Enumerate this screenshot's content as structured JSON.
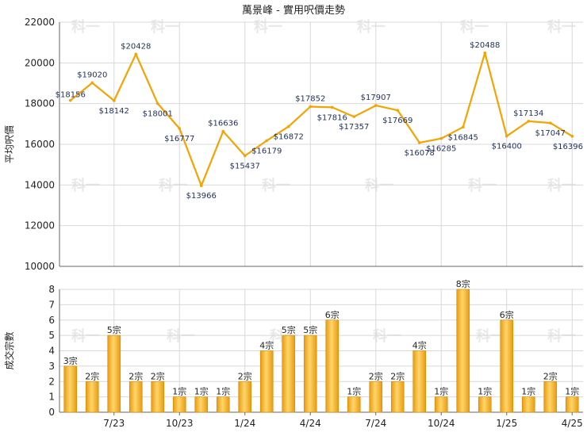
{
  "chart_data": [
    {
      "type": "line",
      "title": "萬景峰 - 實用呎價走勢",
      "ylabel": "平均呎價",
      "ylim": [
        10000,
        22000
      ],
      "yticks": [
        10000,
        12000,
        14000,
        16000,
        18000,
        20000,
        22000
      ],
      "grid": true,
      "series": [
        {
          "color": "#f5a300",
          "values": [
            18156,
            19020,
            18142,
            20428,
            18001,
            16777,
            13966,
            16636,
            15437,
            16179,
            16872,
            17852,
            17816,
            17357,
            17907,
            17669,
            16078,
            16285,
            16845,
            20488,
            16400,
            17134,
            17047,
            16396
          ],
          "labels": [
            "$18156",
            "$19020",
            "$18142",
            "$20428",
            "$18001",
            "$16777",
            "$13966",
            "$16636",
            "$15437",
            "$16179",
            "$16872",
            "$17852",
            "$17816",
            "$17357",
            "$17907",
            "$17669",
            "$16078",
            "$16285",
            "$16845",
            "$20488",
            "$16400",
            "$17134",
            "$17047",
            "$16396"
          ]
        }
      ]
    },
    {
      "type": "bar",
      "ylabel": "成交宗數",
      "ylim": [
        0,
        8
      ],
      "yticks": [
        0,
        1,
        2,
        3,
        4,
        5,
        6,
        7,
        8
      ],
      "grid": true,
      "color": "#f0a818",
      "values": [
        3,
        2,
        5,
        2,
        2,
        1,
        1,
        1,
        2,
        4,
        5,
        5,
        6,
        1,
        2,
        2,
        4,
        1,
        8,
        1,
        6,
        1,
        2,
        1
      ],
      "labels": [
        "3宗",
        "2宗",
        "5宗",
        "2宗",
        "2宗",
        "1宗",
        "1宗",
        "1宗",
        "2宗",
        "4宗",
        "5宗",
        "5宗",
        "6宗",
        "1宗",
        "2宗",
        "2宗",
        "4宗",
        "1宗",
        "8宗",
        "1宗",
        "6宗",
        "1宗",
        "2宗",
        "1宗"
      ],
      "xtick_labels": [
        "7/23",
        "10/23",
        "1/24",
        "4/24",
        "7/24",
        "10/24",
        "1/25",
        "4/25"
      ]
    }
  ],
  "watermark": "科一"
}
